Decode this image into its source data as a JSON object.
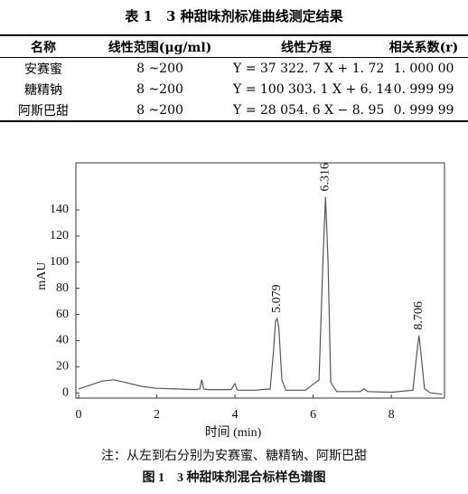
{
  "table": {
    "title": "表 1　3 种甜味剂标准曲线测定结果",
    "header": [
      "名称",
      "线性范围(μg/ml)",
      "线性方程",
      "相关系数(r)"
    ],
    "rows": [
      [
        "安赛蜜",
        "8 ~200",
        "Y = 37 322. 7 X + 1. 72",
        "1. 000 00"
      ],
      [
        "糖精钠",
        "8 ~200",
        "Y = 100 303. 1 X + 6. 14",
        "0. 999 99"
      ],
      [
        "阿斯巴甜",
        "8 ~200",
        "Y = 28 054. 6 X − 8. 95",
        "0. 999 99"
      ]
    ]
  },
  "chart_data": {
    "type": "line",
    "x_label": "时间 (min)",
    "y_label": "mAU",
    "x": [
      0,
      0.3,
      0.6,
      0.9,
      1.2,
      1.6,
      2.0,
      2.5,
      3.0,
      3.1,
      3.15,
      3.2,
      3.3,
      3.9,
      4.0,
      4.05,
      4.1,
      4.5,
      4.9,
      4.98,
      5.04,
      5.079,
      5.12,
      5.2,
      5.3,
      5.8,
      6.15,
      6.25,
      6.316,
      6.38,
      6.45,
      6.6,
      7.2,
      7.3,
      7.4,
      8.0,
      8.55,
      8.65,
      8.706,
      8.76,
      8.85,
      9.0,
      9.3
    ],
    "series": [
      {
        "color": "#555555",
        "values": [
          3,
          6,
          9,
          10,
          8,
          5,
          3.5,
          3,
          2.5,
          3,
          10,
          3,
          2.5,
          2.5,
          7,
          2.5,
          2,
          2,
          3,
          30,
          55,
          57,
          50,
          10,
          2,
          2,
          10,
          100,
          150,
          100,
          8,
          1,
          1,
          3,
          1,
          0.5,
          2,
          30,
          44,
          30,
          3,
          0,
          -1
        ]
      }
    ],
    "peaks": [
      {
        "x": 5.079,
        "y": 57
      },
      {
        "x": 6.316,
        "y": 150
      },
      {
        "x": 8.706,
        "y": 44
      }
    ],
    "xlim": [
      -0.07,
      9.36
    ],
    "ylim": [
      -4,
      176
    ],
    "xticks": [
      0,
      2,
      4,
      6,
      8
    ],
    "yticks": [
      0,
      20,
      40,
      60,
      80,
      100,
      120,
      140
    ]
  },
  "note": "注：从左到右分别为安赛蜜、糖精钠、阿斯巴甜",
  "caption": "图 1　3 种甜味剂混合标样色谱图"
}
